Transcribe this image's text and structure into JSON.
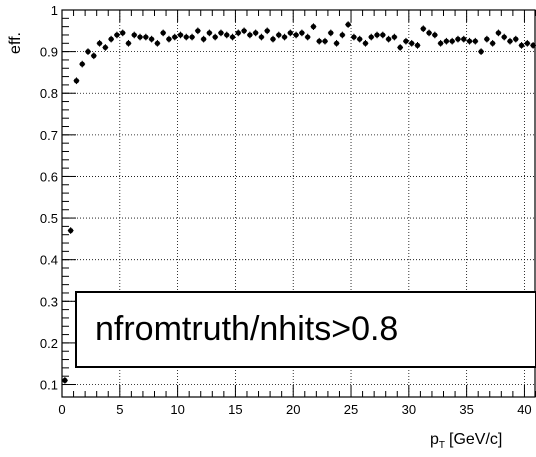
{
  "chart_data": {
    "type": "scatter",
    "ylabel": "eff.",
    "xlabel_main": "p",
    "xlabel_sub": "T",
    "xlabel_unit": "[GeV/c]",
    "xlim": [
      0,
      41
    ],
    "ylim": [
      0.07,
      1.0
    ],
    "x_ticks": [
      "0",
      "5",
      "10",
      "15",
      "20",
      "25",
      "30",
      "35",
      "40"
    ],
    "y_ticks": [
      "0.1",
      "0.2",
      "0.3",
      "0.4",
      "0.5",
      "0.6",
      "0.7",
      "0.8",
      "0.9",
      "1"
    ],
    "grid": true,
    "annotation": "nfromtruth/nhits>0.8",
    "series": [
      {
        "x": [
          0.25,
          0.75,
          1.25,
          1.75,
          2.25,
          2.75,
          3.25,
          3.75,
          4.25,
          4.75,
          5.25,
          5.75,
          6.25,
          6.75,
          7.25,
          7.75,
          8.25,
          8.75,
          9.25,
          9.75,
          10.25,
          10.75,
          11.25,
          11.75,
          12.25,
          12.75,
          13.25,
          13.75,
          14.25,
          14.75,
          15.25,
          15.75,
          16.25,
          16.75,
          17.25,
          17.75,
          18.25,
          18.75,
          19.25,
          19.75,
          20.25,
          20.75,
          21.25,
          21.75,
          22.25,
          22.75,
          23.25,
          23.75,
          24.25,
          24.75,
          25.25,
          25.75,
          26.25,
          26.75,
          27.25,
          27.75,
          28.25,
          28.75,
          29.25,
          29.75,
          30.25,
          30.75,
          31.25,
          31.75,
          32.25,
          32.75,
          33.25,
          33.75,
          34.25,
          34.75,
          35.25,
          35.75,
          36.25,
          36.75,
          37.25,
          37.75,
          38.25,
          38.75,
          39.25,
          39.75,
          40.25,
          40.75
        ],
        "y": [
          0.11,
          0.47,
          0.83,
          0.87,
          0.9,
          0.89,
          0.92,
          0.91,
          0.93,
          0.94,
          0.945,
          0.92,
          0.94,
          0.935,
          0.935,
          0.93,
          0.92,
          0.945,
          0.93,
          0.935,
          0.94,
          0.935,
          0.935,
          0.95,
          0.93,
          0.945,
          0.935,
          0.945,
          0.94,
          0.935,
          0.945,
          0.95,
          0.94,
          0.945,
          0.935,
          0.95,
          0.93,
          0.94,
          0.935,
          0.945,
          0.94,
          0.945,
          0.935,
          0.96,
          0.925,
          0.925,
          0.945,
          0.92,
          0.94,
          0.965,
          0.935,
          0.93,
          0.92,
          0.935,
          0.94,
          0.94,
          0.93,
          0.935,
          0.91,
          0.925,
          0.92,
          0.915,
          0.955,
          0.945,
          0.94,
          0.92,
          0.925,
          0.925,
          0.93,
          0.93,
          0.925,
          0.925,
          0.9,
          0.93,
          0.92,
          0.945,
          0.935,
          0.925,
          0.93,
          0.915,
          0.92,
          0.915
        ],
        "xerr": 0.25,
        "yerr": 0.008
      }
    ]
  }
}
